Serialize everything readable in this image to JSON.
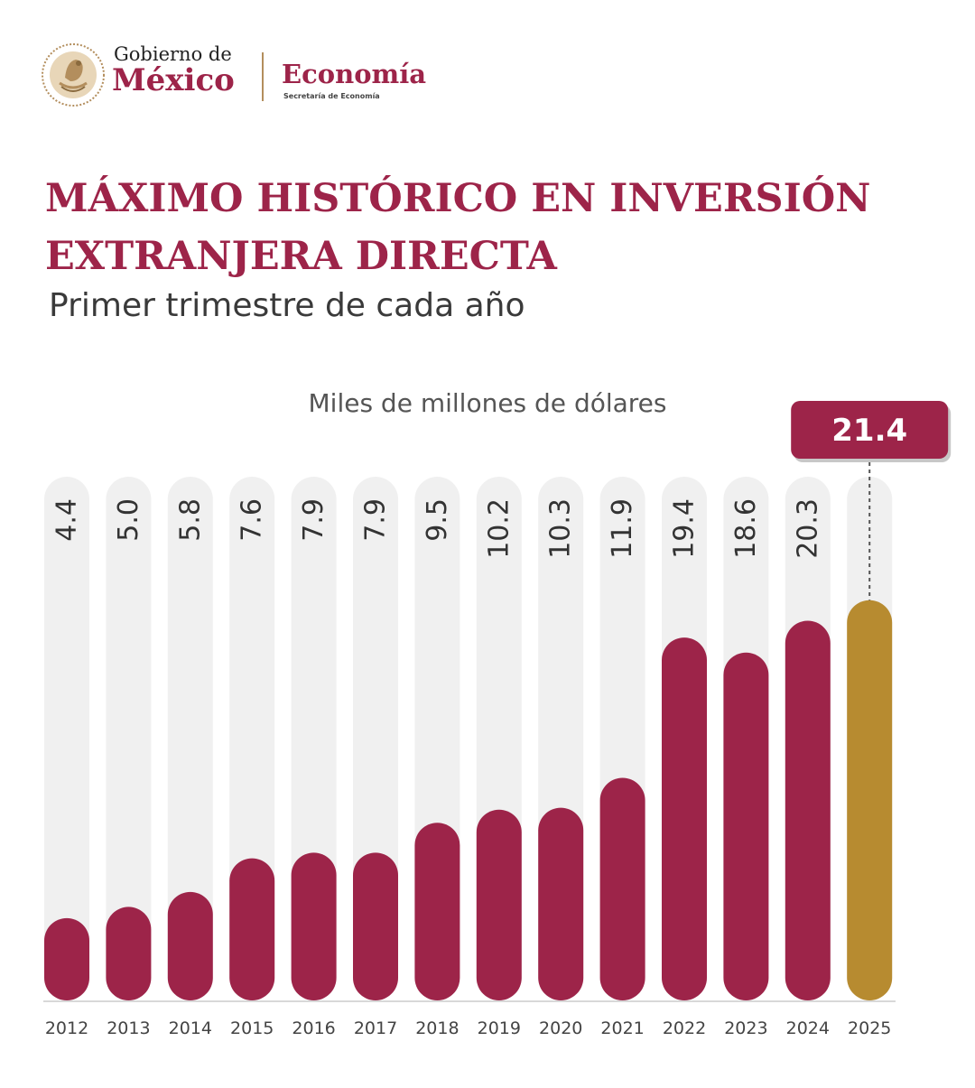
{
  "header": {
    "gob_line1": "Gobierno de",
    "gob_line2": "México",
    "eco_title": "Economía",
    "eco_subtitle": "Secretaría de Economía"
  },
  "title": {
    "line1": "MÁXIMO HISTÓRICO EN INVERSIÓN",
    "line2": "EXTRANJERA DIRECTA",
    "subtitle": "Primer trimestre de cada año",
    "units": "Miles de millones de dólares"
  },
  "colors": {
    "primary": "#9d2449",
    "highlight": "#b78b30",
    "track": "#f0f0f0",
    "seal": "#b38e5d"
  },
  "icons": {
    "seal": "escudo-nacional-icon"
  },
  "chart_data": {
    "type": "bar",
    "categories": [
      "2012",
      "2013",
      "2014",
      "2015",
      "2016",
      "2017",
      "2018",
      "2019",
      "2020",
      "2021",
      "2022",
      "2023",
      "2024",
      "2025"
    ],
    "values": [
      4.4,
      5.0,
      5.8,
      7.6,
      7.9,
      7.9,
      9.5,
      10.2,
      10.3,
      11.9,
      19.4,
      18.6,
      20.3,
      21.4
    ],
    "value_labels": [
      "4.4",
      "5.0",
      "5.8",
      "7.6",
      "7.9",
      "7.9",
      "9.5",
      "10.2",
      "10.3",
      "11.9",
      "19.4",
      "18.6",
      "20.3",
      "21.4"
    ],
    "highlight_index": 13,
    "ylim": [
      0,
      28
    ],
    "grid": false,
    "legend": "none"
  }
}
